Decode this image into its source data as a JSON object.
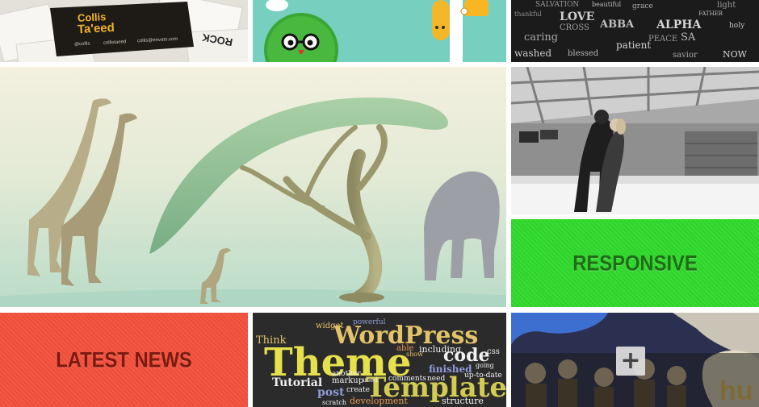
{
  "tiles": {
    "business_cards": {
      "name_line1": "Collis",
      "name_line2": "Ta'eed",
      "handle1": "@collis",
      "handle2": "collistaeed",
      "email": "collis@envato.com",
      "side_text": "ROCK"
    },
    "monster": {},
    "typography": {
      "words": [
        "SALVATION",
        "beautiful",
        "thankful",
        "LOVE",
        "ABBA",
        "caring",
        "washed",
        "ALPHA",
        "PEACE",
        "SA",
        "blessed",
        "patient",
        "CROSS",
        "FATHER",
        "savior",
        "NOW",
        "light",
        "holy",
        "grace"
      ]
    },
    "sculpture": {},
    "ice_rink": {},
    "responsive": {
      "label": "RESPONSIVE"
    },
    "latest_news": {
      "label": "LATEST NEWS"
    },
    "word_cloud": {
      "words": {
        "wordpress": "WordPress",
        "theme": "Theme",
        "template": "Template",
        "code": "code",
        "tutorial": "Tutorial",
        "post": "post",
        "finished": "finished",
        "comments": "comments",
        "structure": "structure",
        "development": "development",
        "think": "Think",
        "including": "including",
        "markup": "markup",
        "used": "used",
        "create": "create",
        "another": "another",
        "need": "need",
        "up_to_date": "up-to-date",
        "able": "able",
        "powerful": "powerful",
        "widget": "widget",
        "css": "css",
        "scratch": "scratch",
        "going": "going",
        "show": "show"
      }
    },
    "illustration": {
      "button_icon": "plus-icon"
    }
  }
}
